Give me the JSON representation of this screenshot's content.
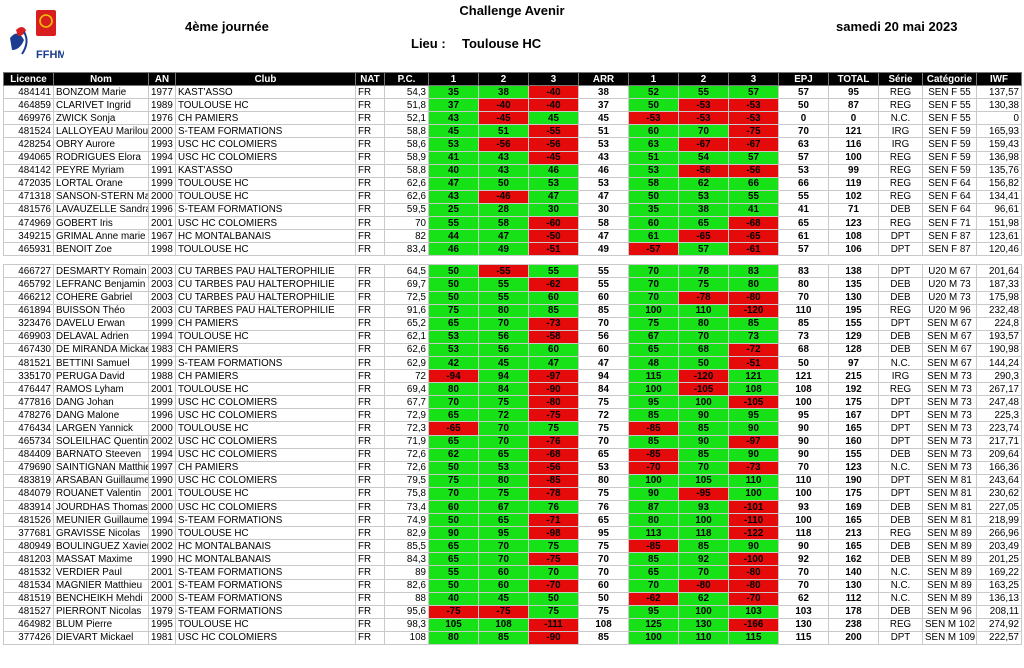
{
  "header": {
    "logo_text": "FFHM",
    "title": "Challenge Avenir",
    "journee": "4ème journée",
    "date": "samedi 20 mai 2023",
    "lieu_label": "Lieu :",
    "lieu_value": "Toulouse HC"
  },
  "colors": {
    "success": "#17e217",
    "fail": "#e60b0b",
    "header_bg": "#000000"
  },
  "columns": [
    "Licence",
    "Nom",
    "AN",
    "Club",
    "NAT",
    "P.C.",
    "1",
    "2",
    "3",
    "ARR",
    "1",
    "2",
    "3",
    "EPJ",
    "TOTAL",
    "Série",
    "Catégorie",
    "IWF"
  ],
  "groups": [
    [
      {
        "lic": "484141",
        "nom": "BONZOM Marie",
        "an": "1977",
        "club": "KAST'ASSO",
        "nat": "FR",
        "pc": "54,3",
        "a1": "35",
        "a2": "38",
        "a3": "-40",
        "arr": "38",
        "e1": "52",
        "e2": "55",
        "e3": "57",
        "epj": "57",
        "tot": "95",
        "serie": "REG",
        "cat": "SEN F 55",
        "iwf": "137,57"
      },
      {
        "lic": "464859",
        "nom": "CLARIVET Ingrid",
        "an": "1989",
        "club": "TOULOUSE HC",
        "nat": "FR",
        "pc": "51,8",
        "a1": "37",
        "a2": "-40",
        "a3": "-40",
        "arr": "37",
        "e1": "50",
        "e2": "-53",
        "e3": "-53",
        "epj": "50",
        "tot": "87",
        "serie": "REG",
        "cat": "SEN F 55",
        "iwf": "130,38"
      },
      {
        "lic": "469976",
        "nom": "ZWICK Sonja",
        "an": "1976",
        "club": "CH PAMIERS",
        "nat": "FR",
        "pc": "52,1",
        "a1": "43",
        "a2": "-45",
        "a3": "45",
        "arr": "45",
        "e1": "-53",
        "e2": "-53",
        "e3": "-53",
        "epj": "0",
        "tot": "0",
        "serie": "N.C.",
        "cat": "SEN F 55",
        "iwf": "0"
      },
      {
        "lic": "481524",
        "nom": "LALLOYEAU Marilou",
        "an": "2000",
        "club": "S-TEAM FORMATIONS",
        "nat": "FR",
        "pc": "58,8",
        "a1": "45",
        "a2": "51",
        "a3": "-55",
        "arr": "51",
        "e1": "60",
        "e2": "70",
        "e3": "-75",
        "epj": "70",
        "tot": "121",
        "serie": "IRG",
        "cat": "SEN F 59",
        "iwf": "165,93"
      },
      {
        "lic": "428254",
        "nom": "OBRY Aurore",
        "an": "1993",
        "club": "USC HC COLOMIERS",
        "nat": "FR",
        "pc": "58,6",
        "a1": "53",
        "a2": "-56",
        "a3": "-56",
        "arr": "53",
        "e1": "63",
        "e2": "-67",
        "e3": "-67",
        "epj": "63",
        "tot": "116",
        "serie": "IRG",
        "cat": "SEN F 59",
        "iwf": "159,43"
      },
      {
        "lic": "494065",
        "nom": "RODRIGUES Elora",
        "an": "1994",
        "club": "USC HC COLOMIERS",
        "nat": "FR",
        "pc": "58,9",
        "a1": "41",
        "a2": "43",
        "a3": "-45",
        "arr": "43",
        "e1": "51",
        "e2": "54",
        "e3": "57",
        "epj": "57",
        "tot": "100",
        "serie": "REG",
        "cat": "SEN F 59",
        "iwf": "136,98"
      },
      {
        "lic": "484142",
        "nom": "PEYRE Myriam",
        "an": "1991",
        "club": "KAST'ASSO",
        "nat": "FR",
        "pc": "58,8",
        "a1": "40",
        "a2": "43",
        "a3": "46",
        "arr": "46",
        "e1": "53",
        "e2": "-56",
        "e3": "-56",
        "epj": "53",
        "tot": "99",
        "serie": "REG",
        "cat": "SEN F 59",
        "iwf": "135,76"
      },
      {
        "lic": "472035",
        "nom": "LORTAL Orane",
        "an": "1999",
        "club": "TOULOUSE HC",
        "nat": "FR",
        "pc": "62,6",
        "a1": "47",
        "a2": "50",
        "a3": "53",
        "arr": "53",
        "e1": "58",
        "e2": "62",
        "e3": "66",
        "epj": "66",
        "tot": "119",
        "serie": "REG",
        "cat": "SEN F 64",
        "iwf": "156,82"
      },
      {
        "lic": "471318",
        "nom": "SANSON-STERN Maj",
        "an": "2000",
        "club": "TOULOUSE HC",
        "nat": "FR",
        "pc": "62,6",
        "a1": "43",
        "a2": "-46",
        "a3": "47",
        "arr": "47",
        "e1": "50",
        "e2": "53",
        "e3": "55",
        "epj": "55",
        "tot": "102",
        "serie": "REG",
        "cat": "SEN F 64",
        "iwf": "134,41"
      },
      {
        "lic": "481576",
        "nom": "LAVAUZELLE Sandra",
        "an": "1996",
        "club": "S-TEAM FORMATIONS",
        "nat": "FR",
        "pc": "59,5",
        "a1": "25",
        "a2": "28",
        "a3": "30",
        "arr": "30",
        "e1": "35",
        "e2": "38",
        "e3": "41",
        "epj": "41",
        "tot": "71",
        "serie": "DEB",
        "cat": "SEN F 64",
        "iwf": "96,61"
      },
      {
        "lic": "474969",
        "nom": "GOBERT Iris",
        "an": "2001",
        "club": "USC HC COLOMIERS",
        "nat": "FR",
        "pc": "70",
        "a1": "55",
        "a2": "58",
        "a3": "-60",
        "arr": "58",
        "e1": "60",
        "e2": "65",
        "e3": "-68",
        "epj": "65",
        "tot": "123",
        "serie": "REG",
        "cat": "SEN F 71",
        "iwf": "151,98"
      },
      {
        "lic": "349215",
        "nom": "GRIMAL Anne marie",
        "an": "1967",
        "club": "HC MONTALBANAIS",
        "nat": "FR",
        "pc": "82",
        "a1": "44",
        "a2": "47",
        "a3": "-50",
        "arr": "47",
        "e1": "61",
        "e2": "-65",
        "e3": "-65",
        "epj": "61",
        "tot": "108",
        "serie": "DPT",
        "cat": "SEN F 87",
        "iwf": "123,61"
      },
      {
        "lic": "465931",
        "nom": "BENOIT Zoe",
        "an": "1998",
        "club": "TOULOUSE HC",
        "nat": "FR",
        "pc": "83,4",
        "a1": "46",
        "a2": "49",
        "a3": "-51",
        "arr": "49",
        "e1": "-57",
        "e2": "57",
        "e3": "-61",
        "epj": "57",
        "tot": "106",
        "serie": "DPT",
        "cat": "SEN F 87",
        "iwf": "120,46"
      }
    ],
    [
      {
        "lic": "466727",
        "nom": "DESMARTY Romain",
        "an": "2003",
        "club": "CU TARBES PAU HALTEROPHILIE",
        "nat": "FR",
        "pc": "64,5",
        "a1": "50",
        "a2": "-55",
        "a3": "55",
        "arr": "55",
        "e1": "70",
        "e2": "78",
        "e3": "83",
        "epj": "83",
        "tot": "138",
        "serie": "DPT",
        "cat": "U20 M 67",
        "iwf": "201,64"
      },
      {
        "lic": "465792",
        "nom": "LEFRANC Benjamin",
        "an": "2003",
        "club": "CU TARBES PAU HALTEROPHILIE",
        "nat": "FR",
        "pc": "69,7",
        "a1": "50",
        "a2": "55",
        "a3": "-62",
        "arr": "55",
        "e1": "70",
        "e2": "75",
        "e3": "80",
        "epj": "80",
        "tot": "135",
        "serie": "DEB",
        "cat": "U20 M 73",
        "iwf": "187,33"
      },
      {
        "lic": "466212",
        "nom": "COHERE Gabriel",
        "an": "2003",
        "club": "CU TARBES PAU HALTEROPHILIE",
        "nat": "FR",
        "pc": "72,5",
        "a1": "50",
        "a2": "55",
        "a3": "60",
        "arr": "60",
        "e1": "70",
        "e2": "-78",
        "e3": "-80",
        "epj": "70",
        "tot": "130",
        "serie": "DEB",
        "cat": "U20 M 73",
        "iwf": "175,98"
      },
      {
        "lic": "461894",
        "nom": "BUISSON Théo",
        "an": "2003",
        "club": "CU TARBES PAU HALTEROPHILIE",
        "nat": "FR",
        "pc": "91,6",
        "a1": "75",
        "a2": "80",
        "a3": "85",
        "arr": "85",
        "e1": "100",
        "e2": "110",
        "e3": "-120",
        "epj": "110",
        "tot": "195",
        "serie": "REG",
        "cat": "U20 M 96",
        "iwf": "232,48"
      },
      {
        "lic": "323476",
        "nom": "DAVELU Erwan",
        "an": "1999",
        "club": "CH PAMIERS",
        "nat": "FR",
        "pc": "65,2",
        "a1": "65",
        "a2": "70",
        "a3": "-73",
        "arr": "70",
        "e1": "75",
        "e2": "80",
        "e3": "85",
        "epj": "85",
        "tot": "155",
        "serie": "DPT",
        "cat": "SEN M 67",
        "iwf": "224,8"
      },
      {
        "lic": "469903",
        "nom": "DELAVAL Adrien",
        "an": "1994",
        "club": "TOULOUSE HC",
        "nat": "FR",
        "pc": "62,1",
        "a1": "53",
        "a2": "56",
        "a3": "-58",
        "arr": "56",
        "e1": "67",
        "e2": "70",
        "e3": "73",
        "epj": "73",
        "tot": "129",
        "serie": "DEB",
        "cat": "SEN M 67",
        "iwf": "193,57"
      },
      {
        "lic": "467430",
        "nom": "DE MIRANDA Mickael",
        "an": "1983",
        "club": "CH PAMIERS",
        "nat": "FR",
        "pc": "62,6",
        "a1": "53",
        "a2": "56",
        "a3": "60",
        "arr": "60",
        "e1": "65",
        "e2": "68",
        "e3": "-72",
        "epj": "68",
        "tot": "128",
        "serie": "DEB",
        "cat": "SEN M 67",
        "iwf": "190,98"
      },
      {
        "lic": "481521",
        "nom": "BETTINI Samuel",
        "an": "1999",
        "club": "S-TEAM FORMATIONS",
        "nat": "FR",
        "pc": "62,9",
        "a1": "42",
        "a2": "45",
        "a3": "47",
        "arr": "47",
        "e1": "48",
        "e2": "50",
        "e3": "-51",
        "epj": "50",
        "tot": "97",
        "serie": "N.C.",
        "cat": "SEN M 67",
        "iwf": "144,24"
      },
      {
        "lic": "335170",
        "nom": "PERUGA David",
        "an": "1988",
        "club": "CH PAMIERS",
        "nat": "FR",
        "pc": "72",
        "a1": "-94",
        "a2": "94",
        "a3": "-97",
        "arr": "94",
        "e1": "115",
        "e2": "-120",
        "e3": "121",
        "epj": "121",
        "tot": "215",
        "serie": "IRG",
        "cat": "SEN M 73",
        "iwf": "290,3"
      },
      {
        "lic": "476447",
        "nom": "RAMOS Lyham",
        "an": "2001",
        "club": "TOULOUSE HC",
        "nat": "FR",
        "pc": "69,4",
        "a1": "80",
        "a2": "84",
        "a3": "-90",
        "arr": "84",
        "e1": "100",
        "e2": "-105",
        "e3": "108",
        "epj": "108",
        "tot": "192",
        "serie": "REG",
        "cat": "SEN M 73",
        "iwf": "267,17"
      },
      {
        "lic": "477816",
        "nom": "DANG Johan",
        "an": "1999",
        "club": "USC HC COLOMIERS",
        "nat": "FR",
        "pc": "67,7",
        "a1": "70",
        "a2": "75",
        "a3": "-80",
        "arr": "75",
        "e1": "95",
        "e2": "100",
        "e3": "-105",
        "epj": "100",
        "tot": "175",
        "serie": "DPT",
        "cat": "SEN M 73",
        "iwf": "247,48"
      },
      {
        "lic": "478276",
        "nom": "DANG Malone",
        "an": "1996",
        "club": "USC HC COLOMIERS",
        "nat": "FR",
        "pc": "72,9",
        "a1": "65",
        "a2": "72",
        "a3": "-75",
        "arr": "72",
        "e1": "85",
        "e2": "90",
        "e3": "95",
        "epj": "95",
        "tot": "167",
        "serie": "DPT",
        "cat": "SEN M 73",
        "iwf": "225,3"
      },
      {
        "lic": "476434",
        "nom": "LARGEN Yannick",
        "an": "2000",
        "club": "TOULOUSE HC",
        "nat": "FR",
        "pc": "72,3",
        "a1": "-65",
        "a2": "70",
        "a3": "75",
        "arr": "75",
        "e1": "-85",
        "e2": "85",
        "e3": "90",
        "epj": "90",
        "tot": "165",
        "serie": "DPT",
        "cat": "SEN M 73",
        "iwf": "223,74"
      },
      {
        "lic": "465734",
        "nom": "SOLEILHAC Quentin",
        "an": "2002",
        "club": "USC HC COLOMIERS",
        "nat": "FR",
        "pc": "71,9",
        "a1": "65",
        "a2": "70",
        "a3": "-76",
        "arr": "70",
        "e1": "85",
        "e2": "90",
        "e3": "-97",
        "epj": "90",
        "tot": "160",
        "serie": "DPT",
        "cat": "SEN M 73",
        "iwf": "217,71"
      },
      {
        "lic": "484409",
        "nom": "BARNATO Steeven",
        "an": "1994",
        "club": "USC HC COLOMIERS",
        "nat": "FR",
        "pc": "72,6",
        "a1": "62",
        "a2": "65",
        "a3": "-68",
        "arr": "65",
        "e1": "-85",
        "e2": "85",
        "e3": "90",
        "epj": "90",
        "tot": "155",
        "serie": "DEB",
        "cat": "SEN M 73",
        "iwf": "209,64"
      },
      {
        "lic": "479690",
        "nom": "SAINTIGNAN Matthieu",
        "an": "1997",
        "club": "CH PAMIERS",
        "nat": "FR",
        "pc": "72,6",
        "a1": "50",
        "a2": "53",
        "a3": "-56",
        "arr": "53",
        "e1": "-70",
        "e2": "70",
        "e3": "-73",
        "epj": "70",
        "tot": "123",
        "serie": "N.C.",
        "cat": "SEN M 73",
        "iwf": "166,36"
      },
      {
        "lic": "483819",
        "nom": "ARSABAN Guillaume",
        "an": "1990",
        "club": "USC HC COLOMIERS",
        "nat": "FR",
        "pc": "79,5",
        "a1": "75",
        "a2": "80",
        "a3": "-85",
        "arr": "80",
        "e1": "100",
        "e2": "105",
        "e3": "110",
        "epj": "110",
        "tot": "190",
        "serie": "DPT",
        "cat": "SEN M 81",
        "iwf": "243,64"
      },
      {
        "lic": "484079",
        "nom": "ROUANET Valentin",
        "an": "2001",
        "club": "TOULOUSE HC",
        "nat": "FR",
        "pc": "75,8",
        "a1": "70",
        "a2": "75",
        "a3": "-78",
        "arr": "75",
        "e1": "90",
        "e2": "-95",
        "e3": "100",
        "epj": "100",
        "tot": "175",
        "serie": "DPT",
        "cat": "SEN M 81",
        "iwf": "230,62"
      },
      {
        "lic": "483914",
        "nom": "JOURDHAS Thomas",
        "an": "2000",
        "club": "USC HC COLOMIERS",
        "nat": "FR",
        "pc": "73,4",
        "a1": "60",
        "a2": "67",
        "a3": "76",
        "arr": "76",
        "e1": "87",
        "e2": "93",
        "e3": "-101",
        "epj": "93",
        "tot": "169",
        "serie": "DEB",
        "cat": "SEN M 81",
        "iwf": "227,05"
      },
      {
        "lic": "481526",
        "nom": "MEUNIER Guillaume",
        "an": "1994",
        "club": "S-TEAM FORMATIONS",
        "nat": "FR",
        "pc": "74,9",
        "a1": "50",
        "a2": "65",
        "a3": "-71",
        "arr": "65",
        "e1": "80",
        "e2": "100",
        "e3": "-110",
        "epj": "100",
        "tot": "165",
        "serie": "DEB",
        "cat": "SEN M 81",
        "iwf": "218,99"
      },
      {
        "lic": "377681",
        "nom": "GRAVISSE Nicolas",
        "an": "1990",
        "club": "TOULOUSE HC",
        "nat": "FR",
        "pc": "82,9",
        "a1": "90",
        "a2": "95",
        "a3": "-98",
        "arr": "95",
        "e1": "113",
        "e2": "118",
        "e3": "-122",
        "epj": "118",
        "tot": "213",
        "serie": "REG",
        "cat": "SEN M 89",
        "iwf": "266,96"
      },
      {
        "lic": "480949",
        "nom": "BOULINGUEZ Xavier",
        "an": "2002",
        "club": "HC MONTALBANAIS",
        "nat": "FR",
        "pc": "85,5",
        "a1": "65",
        "a2": "70",
        "a3": "75",
        "arr": "75",
        "e1": "-85",
        "e2": "85",
        "e3": "90",
        "epj": "90",
        "tot": "165",
        "serie": "DEB",
        "cat": "SEN M 89",
        "iwf": "203,49"
      },
      {
        "lic": "481203",
        "nom": "MASSAT Maxime",
        "an": "1990",
        "club": "HC MONTALBANAIS",
        "nat": "FR",
        "pc": "84,3",
        "a1": "65",
        "a2": "70",
        "a3": "-75",
        "arr": "70",
        "e1": "85",
        "e2": "92",
        "e3": "-100",
        "epj": "92",
        "tot": "162",
        "serie": "DEB",
        "cat": "SEN M 89",
        "iwf": "201,25"
      },
      {
        "lic": "481532",
        "nom": "VERDIER Paul",
        "an": "2001",
        "club": "S-TEAM FORMATIONS",
        "nat": "FR",
        "pc": "89",
        "a1": "55",
        "a2": "60",
        "a3": "70",
        "arr": "70",
        "e1": "65",
        "e2": "70",
        "e3": "-80",
        "epj": "70",
        "tot": "140",
        "serie": "N.C.",
        "cat": "SEN M 89",
        "iwf": "169,22"
      },
      {
        "lic": "481534",
        "nom": "MAGNIER Matthieu",
        "an": "2001",
        "club": "S-TEAM FORMATIONS",
        "nat": "FR",
        "pc": "82,6",
        "a1": "50",
        "a2": "60",
        "a3": "-70",
        "arr": "60",
        "e1": "70",
        "e2": "-80",
        "e3": "-80",
        "epj": "70",
        "tot": "130",
        "serie": "N.C.",
        "cat": "SEN M 89",
        "iwf": "163,25"
      },
      {
        "lic": "481519",
        "nom": "BENCHEIKH Mehdi",
        "an": "2000",
        "club": "S-TEAM FORMATIONS",
        "nat": "FR",
        "pc": "88",
        "a1": "40",
        "a2": "45",
        "a3": "50",
        "arr": "50",
        "e1": "-62",
        "e2": "62",
        "e3": "-70",
        "epj": "62",
        "tot": "112",
        "serie": "N.C.",
        "cat": "SEN M 89",
        "iwf": "136,13"
      },
      {
        "lic": "481527",
        "nom": "PIERRONT Nicolas",
        "an": "1979",
        "club": "S-TEAM FORMATIONS",
        "nat": "FR",
        "pc": "95,6",
        "a1": "-75",
        "a2": "-75",
        "a3": "75",
        "arr": "75",
        "e1": "95",
        "e2": "100",
        "e3": "103",
        "epj": "103",
        "tot": "178",
        "serie": "DEB",
        "cat": "SEN M 96",
        "iwf": "208,11"
      },
      {
        "lic": "464982",
        "nom": "BLUM Pierre",
        "an": "1995",
        "club": "TOULOUSE HC",
        "nat": "FR",
        "pc": "98,3",
        "a1": "105",
        "a2": "108",
        "a3": "-111",
        "arr": "108",
        "e1": "125",
        "e2": "130",
        "e3": "-166",
        "epj": "130",
        "tot": "238",
        "serie": "REG",
        "cat": "SEN M 102",
        "iwf": "274,92"
      },
      {
        "lic": "377426",
        "nom": "DIEVART Mickael",
        "an": "1981",
        "club": "USC HC COLOMIERS",
        "nat": "FR",
        "pc": "108",
        "a1": "80",
        "a2": "85",
        "a3": "-90",
        "arr": "85",
        "e1": "100",
        "e2": "110",
        "e3": "115",
        "epj": "115",
        "tot": "200",
        "serie": "DPT",
        "cat": "SEN M 109",
        "iwf": "222,57"
      }
    ]
  ]
}
